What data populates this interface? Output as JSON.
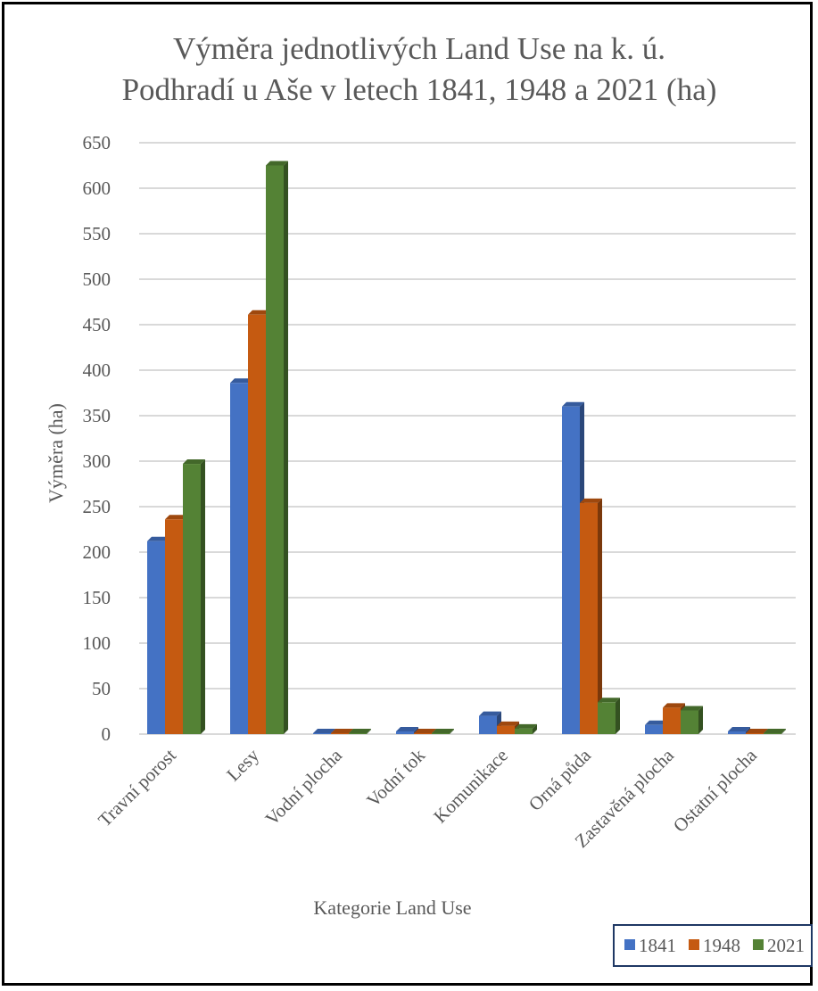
{
  "chart_data": {
    "type": "bar",
    "title_lines": [
      "Výměra jednotlivých Land Use na k. ú.",
      "Podhradí u Aše v letech 1841, 1948 a 2021 (ha)"
    ],
    "xlabel": "Kategorie Land Use",
    "ylabel": "Výměra (ha)",
    "ylim": [
      0,
      650
    ],
    "yticks": [
      0,
      50,
      100,
      150,
      200,
      250,
      300,
      350,
      400,
      450,
      500,
      550,
      600,
      650
    ],
    "grid": true,
    "legend_position": "bottom-right",
    "categories": [
      "Travní porost",
      "Lesy",
      "Vodní plocha",
      "Vodní tok",
      "Komunikace",
      "Orná půda",
      "Zastavěná plocha",
      "Ostatní plocha"
    ],
    "series": [
      {
        "name": "1841",
        "color": "#4472C4",
        "values": [
          212,
          386,
          1,
          3,
          20,
          360,
          10,
          3
        ]
      },
      {
        "name": "1948",
        "color": "#C55A11",
        "values": [
          236,
          461,
          1,
          1,
          9,
          254,
          29,
          1
        ]
      },
      {
        "name": "2021",
        "color": "#548235",
        "values": [
          297,
          625,
          1,
          1,
          6,
          35,
          26,
          1
        ]
      }
    ]
  }
}
